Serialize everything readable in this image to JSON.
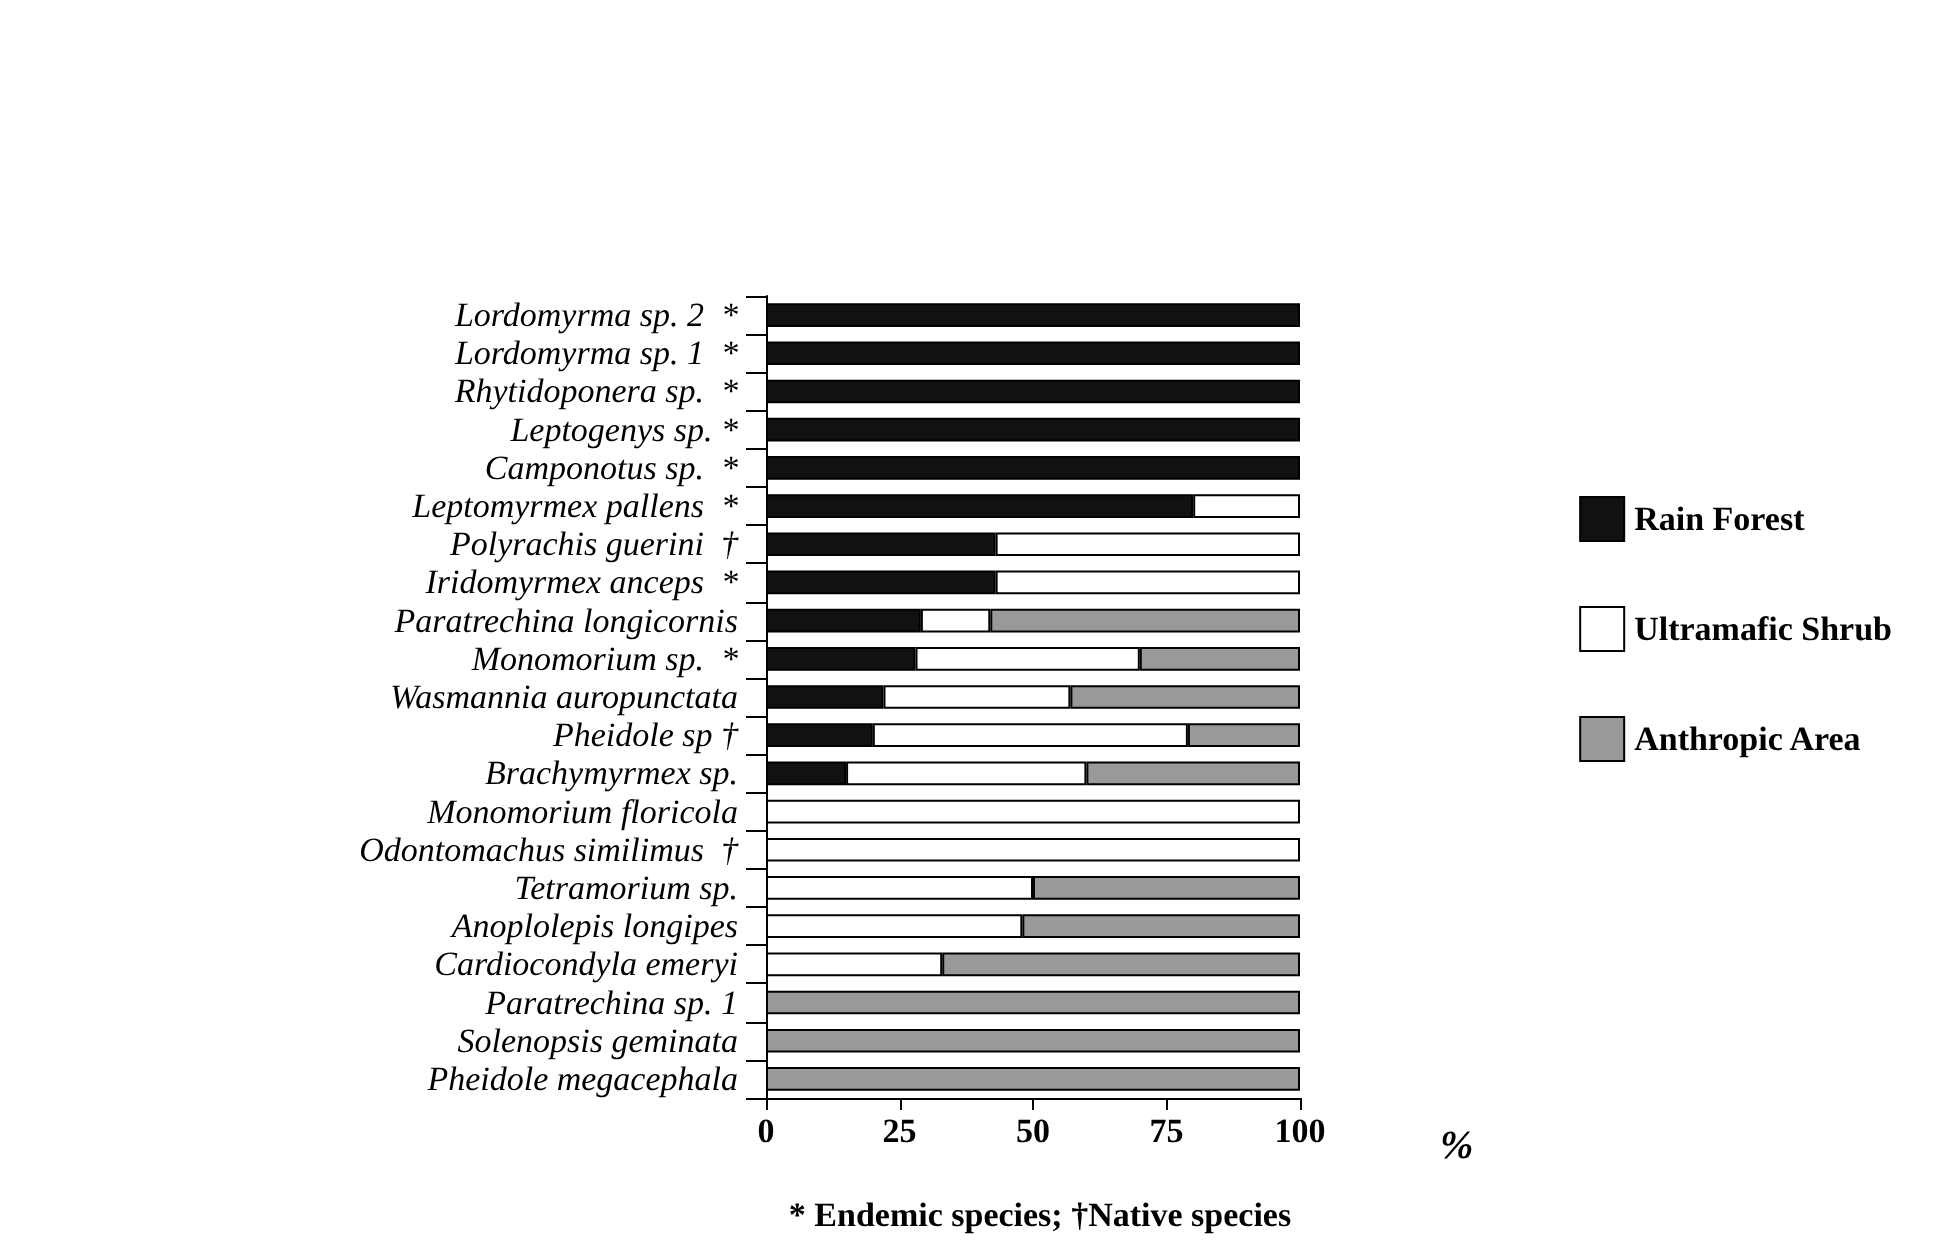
{
  "chart_data": {
    "type": "bar",
    "orientation": "horizontal",
    "stacked": true,
    "xlabel": "%",
    "annotations": [
      "* Endemic species; †Native species"
    ],
    "categories": [
      "Lordomyrma sp. 2  *",
      "Lordomyrma sp. 1  *",
      "Rhytidoponera sp.  *",
      "Leptogenys sp. *",
      "Camponotus sp.  *",
      "Leptomyrmex pallens  *",
      "Polyrachis guerini  †",
      "Iridomyrmex anceps  *",
      "Paratrechina longicornis",
      "Monomorium sp.  *",
      "Wasmannia auropunctata",
      "Pheidole sp †",
      "Brachymyrmex sp.",
      "Monomorium floricola",
      "Odontomachus similimus  †",
      "Tetramorium sp.",
      "Anoplolepis longipes",
      "Cardiocondyla emeryi",
      "Paratrechina sp. 1",
      "Solenopsis geminata",
      "Pheidole megacephala"
    ],
    "series": [
      {
        "name": "Rain Forest",
        "color": "#111111",
        "values": [
          100,
          100,
          100,
          100,
          100,
          80,
          43,
          43,
          29,
          28,
          22,
          20,
          15,
          0,
          0,
          0,
          0,
          0,
          0,
          0,
          0
        ]
      },
      {
        "name": "Ultramafic Shrub",
        "color": "#ffffff",
        "values": [
          0,
          0,
          0,
          0,
          0,
          20,
          57,
          57,
          13,
          42,
          35,
          59,
          45,
          100,
          100,
          50,
          48,
          33,
          0,
          0,
          0
        ]
      },
      {
        "name": "Anthropic Area",
        "color": "#999999",
        "values": [
          0,
          0,
          0,
          0,
          0,
          0,
          0,
          0,
          58,
          30,
          43,
          21,
          40,
          0,
          0,
          50,
          52,
          67,
          100,
          100,
          100
        ]
      }
    ],
    "xlim": [
      0,
      100
    ],
    "xticks": [
      0,
      25,
      50,
      75,
      100
    ],
    "grid": false,
    "legend": "right"
  }
}
